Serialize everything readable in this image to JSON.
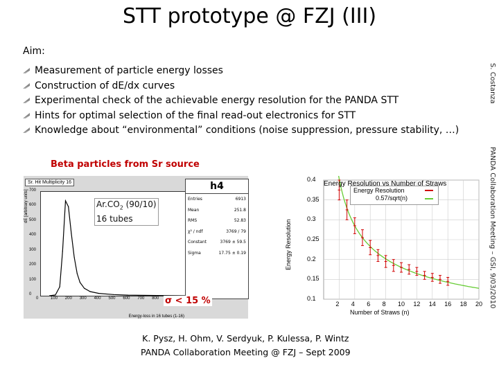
{
  "slide": {
    "title": "STT prototype @ FZJ (III)",
    "aim_label": "Aim:",
    "bullets": [
      "Measurement of particle energy losses",
      "Construction of dE/dx curves",
      "Experimental check of the achievable energy resolution for the PANDA STT",
      "Hints for optimal selection of the final read-out electronics for STT",
      "Knowledge about “environmental” conditions (noise suppression, pressure stability, …)"
    ],
    "side_author": "S. Costanza",
    "side_meeting": "PANDA Collaboration Meeting – GSI, 9/03/2010",
    "subtitle": "Beta particles from Sr source",
    "gas_annotation": "Ar.CO",
    "gas_sub": "2",
    "gas_ratio": " (90/10)",
    "tubes_annotation": "16 tubes",
    "sigma_symbol": "σ",
    "sigma_text": " < 15 %",
    "footer_line1": "K. Pysz, H. Ohm, V. Serdyuk, P. Kulessa, P. Wintz",
    "footer_line2": "PANDA Collaboration Meeting @ FZJ – Sept 2009",
    "accent_color": "#c00000"
  },
  "chart_data": [
    {
      "type": "bar",
      "title": "Sr. Hit Multiplicity 16",
      "histogram_name": "h4",
      "xlabel": "Energy-loss in 16 tubes (1-16)",
      "ylabel": "dE [arbitrary units]",
      "xlim": [
        0,
        1000
      ],
      "ylim": [
        0,
        700
      ],
      "xticks": [
        "0",
        "100",
        "200",
        "300",
        "400",
        "500",
        "600",
        "700",
        "800",
        "900",
        "1000"
      ],
      "yticks": [
        "0",
        "100",
        "200",
        "300",
        "400",
        "500",
        "600",
        "700"
      ],
      "x": [
        60,
        100,
        130,
        150,
        170,
        190,
        210,
        230,
        250,
        270,
        300,
        340,
        400,
        500,
        600,
        800,
        1000
      ],
      "values": [
        0,
        5,
        60,
        300,
        640,
        600,
        420,
        260,
        150,
        90,
        50,
        28,
        16,
        8,
        4,
        2,
        0
      ],
      "stats": [
        {
          "label": "Entries",
          "value": "6913"
        },
        {
          "label": "Mean",
          "value": "251.8"
        },
        {
          "label": "RMS",
          "value": "52.83"
        },
        {
          "label": "χ² / ndf",
          "value": "3769 / 79"
        },
        {
          "label": "Constant",
          "value": "3769 ± 59.5"
        },
        {
          "label": "Sigma",
          "value": "17.75 ± 0.19"
        }
      ]
    },
    {
      "type": "scatter",
      "title": "Energy Resolution vs Number of Straws",
      "xlabel": "Number of Straws (n)",
      "ylabel": "Energy Resolution",
      "xlim": [
        0,
        20
      ],
      "ylim": [
        0.1,
        0.4
      ],
      "xticks": [
        "2",
        "4",
        "6",
        "8",
        "10",
        "12",
        "14",
        "16",
        "18",
        "20"
      ],
      "yticks": [
        "0.1",
        "0.15",
        "0.2",
        "0.25",
        "0.3",
        "0.35",
        "0.4"
      ],
      "legend": [
        "Energy Resolution",
        "0.57/sqrt(n)"
      ],
      "legend_position": "top-right",
      "fit_coefficient": 0.57,
      "series": [
        {
          "name": "Energy Resolution",
          "x": [
            2,
            3,
            4,
            5,
            6,
            7,
            8,
            9,
            10,
            11,
            12,
            13,
            14,
            15,
            16
          ],
          "values": [
            0.375,
            0.325,
            0.285,
            0.255,
            0.23,
            0.21,
            0.195,
            0.185,
            0.18,
            0.175,
            0.17,
            0.16,
            0.155,
            0.15,
            0.145
          ],
          "errors": [
            0.025,
            0.025,
            0.02,
            0.02,
            0.018,
            0.015,
            0.015,
            0.015,
            0.012,
            0.012,
            0.01,
            0.01,
            0.01,
            0.01,
            0.01
          ]
        }
      ]
    }
  ]
}
